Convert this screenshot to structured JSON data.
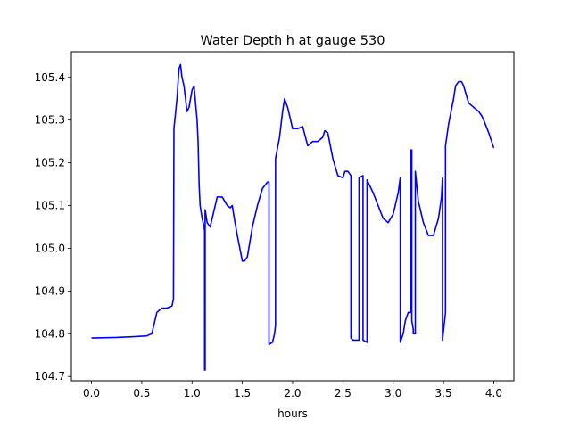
{
  "chart_data": {
    "type": "line",
    "title": "Water Depth h at gauge 530",
    "xlabel": "hours",
    "ylabel": "",
    "xlim": [
      -0.2,
      4.2
    ],
    "ylim": [
      104.69,
      105.46
    ],
    "xticks": [
      0.0,
      0.5,
      1.0,
      1.5,
      2.0,
      2.5,
      3.0,
      3.5,
      4.0
    ],
    "xtick_labels": [
      "0.0",
      "0.5",
      "1.0",
      "1.5",
      "2.0",
      "2.5",
      "3.0",
      "3.5",
      "4.0"
    ],
    "yticks": [
      104.7,
      104.8,
      104.9,
      105.0,
      105.1,
      105.2,
      105.3,
      105.4
    ],
    "ytick_labels": [
      "104.7",
      "104.8",
      "104.9",
      "105.0",
      "105.1",
      "105.2",
      "105.3",
      "105.4"
    ],
    "grid": false,
    "series": [
      {
        "color": "#0000ff",
        "x": [
          0.0,
          0.2,
          0.4,
          0.55,
          0.6,
          0.62,
          0.65,
          0.7,
          0.75,
          0.8,
          0.815,
          0.82,
          0.82,
          0.85,
          0.87,
          0.885,
          0.9,
          0.92,
          0.95,
          0.97,
          1.0,
          1.02,
          1.05,
          1.06,
          1.07,
          1.08,
          1.1,
          1.12,
          1.125,
          1.125,
          1.13,
          1.13,
          1.15,
          1.18,
          1.2,
          1.25,
          1.3,
          1.35,
          1.38,
          1.4,
          1.42,
          1.45,
          1.5,
          1.52,
          1.55,
          1.6,
          1.65,
          1.7,
          1.75,
          1.765,
          1.765,
          1.8,
          1.82,
          1.83,
          1.83,
          1.87,
          1.9,
          1.92,
          1.95,
          2.0,
          2.05,
          2.1,
          2.15,
          2.2,
          2.25,
          2.3,
          2.32,
          2.35,
          2.4,
          2.45,
          2.5,
          2.52,
          2.55,
          2.58,
          2.58,
          2.6,
          2.65,
          2.66,
          2.66,
          2.7,
          2.7,
          2.74,
          2.74,
          2.75,
          2.8,
          2.85,
          2.9,
          2.95,
          3.0,
          3.05,
          3.07,
          3.07,
          3.1,
          3.12,
          3.15,
          3.17,
          3.175,
          3.175,
          3.185,
          3.185,
          3.2,
          3.2,
          3.22,
          3.22,
          3.25,
          3.3,
          3.35,
          3.4,
          3.45,
          3.48,
          3.49,
          3.49,
          3.52,
          3.52,
          3.55,
          3.6,
          3.62,
          3.65,
          3.68,
          3.7,
          3.75,
          3.8,
          3.85,
          3.88,
          3.9,
          3.95,
          4.0
        ],
        "y": [
          104.79,
          104.791,
          104.793,
          104.795,
          104.8,
          104.82,
          104.85,
          104.86,
          104.86,
          104.865,
          104.88,
          105.28,
          105.28,
          105.35,
          105.42,
          105.43,
          105.4,
          105.38,
          105.32,
          105.33,
          105.37,
          105.38,
          105.3,
          105.25,
          105.15,
          105.1,
          105.07,
          105.05,
          105.04,
          104.715,
          104.715,
          105.09,
          105.06,
          105.05,
          105.07,
          105.12,
          105.12,
          105.1,
          105.095,
          105.1,
          105.07,
          105.03,
          104.97,
          104.97,
          104.98,
          105.05,
          105.1,
          105.14,
          105.155,
          105.155,
          104.775,
          104.78,
          104.8,
          104.82,
          105.21,
          105.26,
          105.32,
          105.35,
          105.33,
          105.28,
          105.28,
          105.285,
          105.24,
          105.25,
          105.25,
          105.26,
          105.275,
          105.27,
          105.21,
          105.17,
          105.165,
          105.18,
          105.18,
          105.17,
          104.79,
          104.785,
          104.785,
          104.785,
          105.165,
          105.17,
          104.785,
          104.78,
          105.16,
          105.155,
          105.13,
          105.1,
          105.07,
          105.06,
          105.08,
          105.13,
          105.165,
          104.78,
          104.8,
          104.83,
          104.85,
          104.85,
          104.85,
          105.23,
          105.23,
          104.83,
          104.81,
          104.8,
          104.8,
          105.18,
          105.11,
          105.06,
          105.03,
          105.03,
          105.07,
          105.12,
          105.165,
          104.785,
          104.85,
          105.24,
          105.29,
          105.35,
          105.38,
          105.39,
          105.39,
          105.38,
          105.34,
          105.33,
          105.32,
          105.31,
          105.3,
          105.27,
          105.235
        ]
      }
    ]
  }
}
